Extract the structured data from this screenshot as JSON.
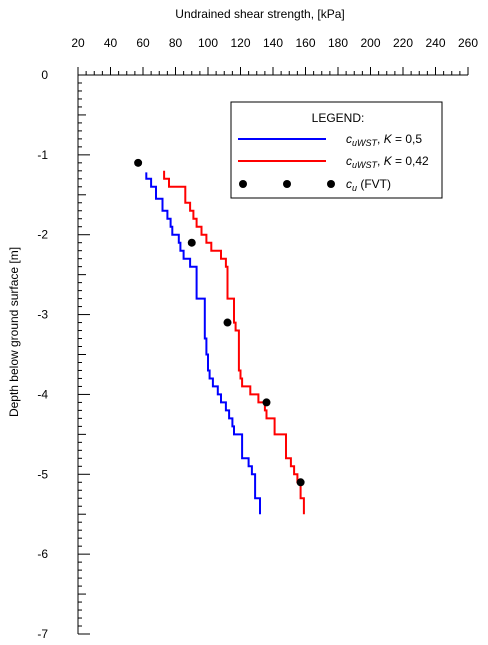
{
  "chart_data": {
    "type": "line",
    "title": "",
    "xlabel": "Undrained shear strength, [kPa]",
    "ylabel": "Depth below ground surface [m]",
    "xlim": [
      20,
      260
    ],
    "ylim": [
      -7,
      0
    ],
    "x_ticks": [
      20,
      40,
      60,
      80,
      100,
      120,
      140,
      160,
      180,
      200,
      220,
      240,
      260
    ],
    "y_ticks": [
      0,
      -1,
      -2,
      -3,
      -4,
      -5,
      -6,
      -7
    ],
    "x_axis_position": "top",
    "grid": false,
    "legend": {
      "title": "LEGEND:",
      "position": "top-right",
      "entries": [
        {
          "symbol": "c",
          "subscript": "uWST",
          "suffix": ", ",
          "param": "K",
          "value": " = 0,5"
        },
        {
          "symbol": "c",
          "subscript": "uWST",
          "suffix": ", ",
          "param": "K",
          "value": " = 0,42"
        },
        {
          "symbol": "c",
          "subscript": "u",
          "suffix": " (FVT)",
          "param": "",
          "value": ""
        }
      ]
    },
    "series": [
      {
        "kind": "step-line",
        "color": "#0000ff",
        "points": [
          [
            62,
            -1.22
          ],
          [
            62,
            -1.3
          ],
          [
            65,
            -1.3
          ],
          [
            65,
            -1.4
          ],
          [
            68,
            -1.4
          ],
          [
            68,
            -1.55
          ],
          [
            72,
            -1.55
          ],
          [
            72,
            -1.7
          ],
          [
            75,
            -1.7
          ],
          [
            75,
            -1.8
          ],
          [
            77,
            -1.8
          ],
          [
            77,
            -1.9
          ],
          [
            78,
            -1.9
          ],
          [
            78,
            -2.0
          ],
          [
            82,
            -2.0
          ],
          [
            82,
            -2.1
          ],
          [
            83,
            -2.1
          ],
          [
            83,
            -2.2
          ],
          [
            85,
            -2.2
          ],
          [
            85,
            -2.3
          ],
          [
            89,
            -2.3
          ],
          [
            89,
            -2.4
          ],
          [
            93,
            -2.4
          ],
          [
            93,
            -2.8
          ],
          [
            98,
            -2.8
          ],
          [
            98,
            -3.3
          ],
          [
            99,
            -3.3
          ],
          [
            99,
            -3.5
          ],
          [
            100,
            -3.5
          ],
          [
            100,
            -3.7
          ],
          [
            101,
            -3.7
          ],
          [
            101,
            -3.8
          ],
          [
            103,
            -3.8
          ],
          [
            103,
            -3.9
          ],
          [
            106,
            -3.9
          ],
          [
            106,
            -4.0
          ],
          [
            108,
            -4.0
          ],
          [
            108,
            -4.1
          ],
          [
            111,
            -4.1
          ],
          [
            111,
            -4.2
          ],
          [
            113,
            -4.2
          ],
          [
            113,
            -4.3
          ],
          [
            115,
            -4.3
          ],
          [
            115,
            -4.4
          ],
          [
            116,
            -4.4
          ],
          [
            116,
            -4.5
          ],
          [
            121,
            -4.5
          ],
          [
            121,
            -4.8
          ],
          [
            125,
            -4.8
          ],
          [
            125,
            -4.9
          ],
          [
            127,
            -4.9
          ],
          [
            127,
            -5.0
          ],
          [
            129,
            -5.0
          ],
          [
            129,
            -5.3
          ],
          [
            132,
            -5.3
          ],
          [
            132,
            -5.5
          ]
        ]
      },
      {
        "kind": "step-line",
        "color": "#ff0000",
        "points": [
          [
            73,
            -1.2
          ],
          [
            73,
            -1.3
          ],
          [
            76,
            -1.3
          ],
          [
            76,
            -1.4
          ],
          [
            86,
            -1.4
          ],
          [
            86,
            -1.6
          ],
          [
            89,
            -1.6
          ],
          [
            89,
            -1.7
          ],
          [
            91,
            -1.7
          ],
          [
            91,
            -1.8
          ],
          [
            93,
            -1.8
          ],
          [
            93,
            -1.9
          ],
          [
            96,
            -1.9
          ],
          [
            96,
            -2.0
          ],
          [
            99,
            -2.0
          ],
          [
            99,
            -2.1
          ],
          [
            102,
            -2.1
          ],
          [
            102,
            -2.2
          ],
          [
            108,
            -2.2
          ],
          [
            108,
            -2.3
          ],
          [
            111,
            -2.3
          ],
          [
            111,
            -2.4
          ],
          [
            112,
            -2.4
          ],
          [
            112,
            -2.8
          ],
          [
            116,
            -2.8
          ],
          [
            116,
            -3.1
          ],
          [
            117,
            -3.1
          ],
          [
            117,
            -3.2
          ],
          [
            119,
            -3.2
          ],
          [
            119,
            -3.7
          ],
          [
            120,
            -3.7
          ],
          [
            120,
            -3.8
          ],
          [
            121,
            -3.8
          ],
          [
            121,
            -3.9
          ],
          [
            126,
            -3.9
          ],
          [
            126,
            -4.0
          ],
          [
            131,
            -4.0
          ],
          [
            131,
            -4.1
          ],
          [
            135,
            -4.1
          ],
          [
            135,
            -4.2
          ],
          [
            136,
            -4.2
          ],
          [
            136,
            -4.3
          ],
          [
            141,
            -4.3
          ],
          [
            141,
            -4.5
          ],
          [
            148,
            -4.5
          ],
          [
            148,
            -4.8
          ],
          [
            151,
            -4.8
          ],
          [
            151,
            -4.9
          ],
          [
            153,
            -4.9
          ],
          [
            153,
            -5.0
          ],
          [
            155,
            -5.0
          ],
          [
            155,
            -5.1
          ],
          [
            157,
            -5.1
          ],
          [
            157,
            -5.3
          ],
          [
            159,
            -5.3
          ],
          [
            159,
            -5.5
          ]
        ]
      },
      {
        "kind": "scatter",
        "color": "#000000",
        "points": [
          [
            57,
            -1.1
          ],
          [
            90,
            -2.1
          ],
          [
            112,
            -3.1
          ],
          [
            136,
            -4.1
          ],
          [
            157,
            -5.1
          ]
        ]
      }
    ]
  }
}
